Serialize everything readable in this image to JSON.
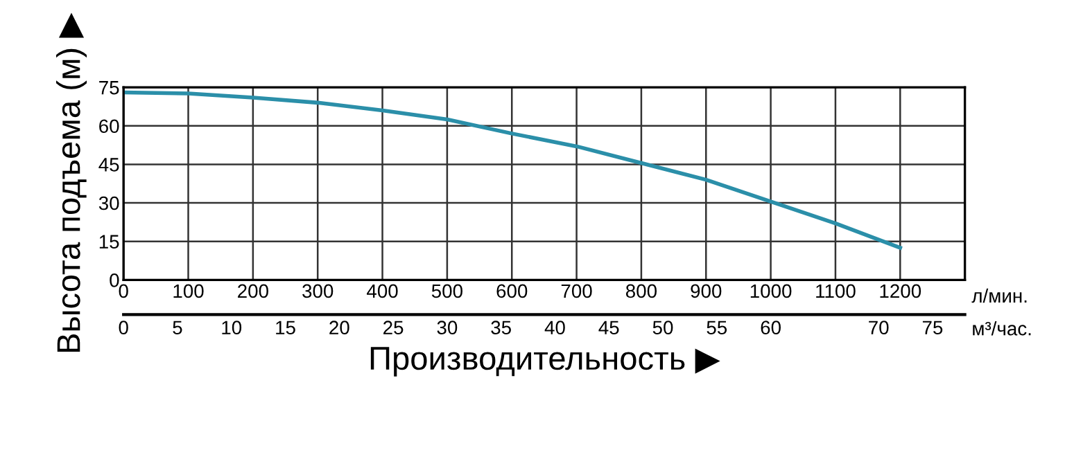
{
  "chart_data": {
    "type": "line",
    "xlabel": "Производительность ▶",
    "ylabel": "Высота подъема (м) ▶",
    "x": [
      0,
      100,
      200,
      300,
      400,
      500,
      600,
      700,
      800,
      900,
      1000,
      1100,
      1200
    ],
    "series": [
      {
        "color": "#2b8fa9",
        "values": [
          73,
          72.6,
          71,
          69,
          66,
          62.5,
          57,
          52,
          45.5,
          39,
          30.5,
          22,
          12.5
        ]
      }
    ],
    "xlim": [
      0,
      1300
    ],
    "xticks": [
      0,
      100,
      200,
      300,
      400,
      500,
      600,
      700,
      800,
      900,
      1000,
      1100,
      1200
    ],
    "ylim": [
      0,
      75
    ],
    "yticks": [
      0,
      15,
      30,
      45,
      60,
      75
    ],
    "x2lim": [
      0,
      78
    ],
    "x2ticks": [
      0,
      5,
      10,
      15,
      20,
      25,
      30,
      35,
      40,
      45,
      50,
      55,
      60,
      70,
      75
    ],
    "annotations": [
      "л/мин.",
      "м³/час."
    ],
    "grid": true,
    "legend": false,
    "marker": "none",
    "line_style": "solid"
  }
}
